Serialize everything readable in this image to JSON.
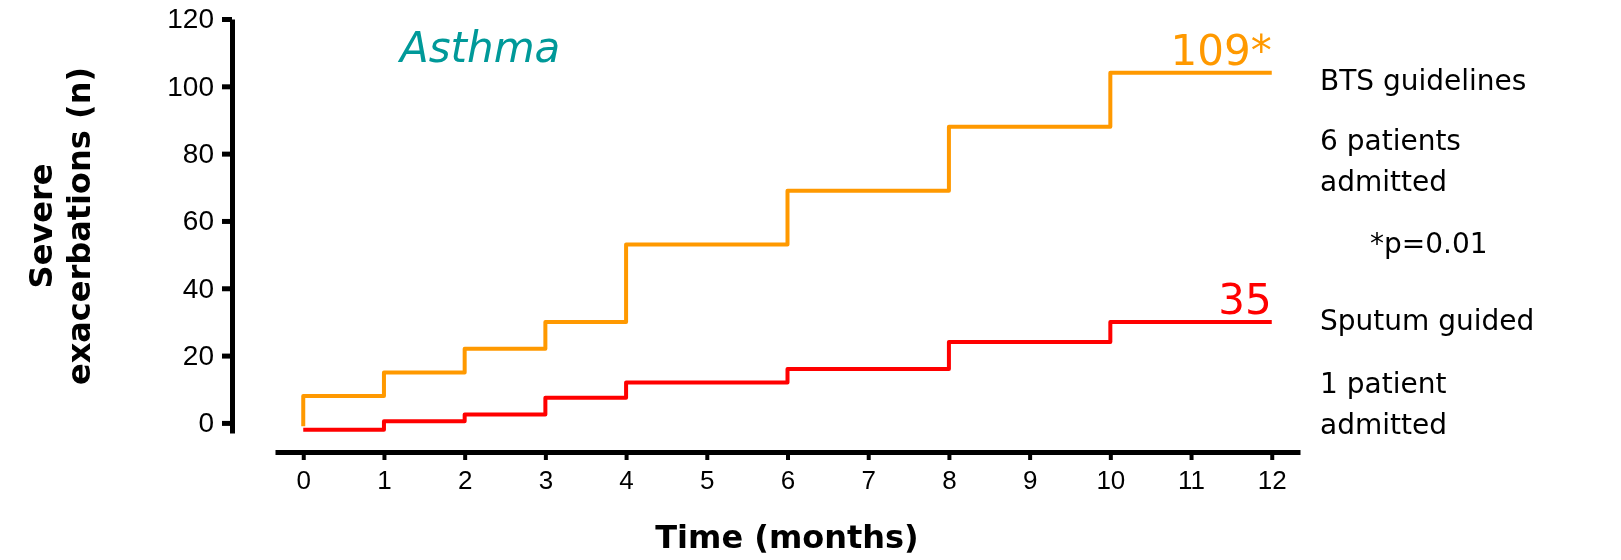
{
  "chart_data": {
    "type": "step",
    "title": "Asthma",
    "xlabel": "Time (months)",
    "ylabel": "Severe exacerbations (n)",
    "xlim": [
      -0.35,
      12.35
    ],
    "xticks": [
      0,
      1,
      2,
      3,
      4,
      5,
      6,
      7,
      8,
      9,
      10,
      11,
      12
    ],
    "ylim": [
      -3,
      120
    ],
    "yticks": [
      0,
      20,
      40,
      60,
      80,
      100,
      120
    ],
    "grid": false,
    "marker": "none",
    "line_style": "solid",
    "series": [
      {
        "name": "BTS guidelines",
        "color": "#ff9900",
        "x": [
          0,
          0,
          1,
          2,
          3,
          4,
          6,
          8,
          10,
          12
        ],
        "values": [
          -1,
          8,
          15,
          22,
          30,
          53,
          69,
          88,
          104,
          104
        ]
      },
      {
        "name": "Sputum guided",
        "color": "#ff0000",
        "x": [
          0,
          1,
          2,
          3,
          4,
          6,
          8,
          10,
          12
        ],
        "values": [
          -2,
          0.5,
          2.5,
          7.5,
          12,
          16,
          24,
          30,
          30
        ]
      }
    ],
    "annotations": [
      {
        "text": "109*",
        "x": 12,
        "y": 104
      },
      {
        "text": "35",
        "x": 12,
        "y": 30
      },
      "6 patients admitted",
      "*p=0.01",
      "1 patient admitted"
    ]
  }
}
